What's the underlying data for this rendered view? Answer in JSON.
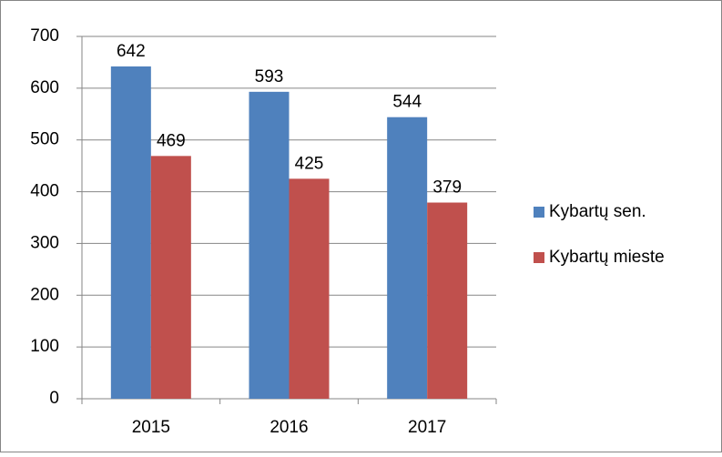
{
  "chart_data": {
    "type": "bar",
    "categories": [
      "2015",
      "2016",
      "2017"
    ],
    "series": [
      {
        "name": "Kybartų sen.",
        "color": "#4f81bd",
        "values": [
          642,
          593,
          544
        ]
      },
      {
        "name": "Kybartų mieste",
        "color": "#c0504d",
        "values": [
          469,
          425,
          379
        ]
      }
    ],
    "ylim": [
      0,
      700
    ],
    "yticks": [
      0,
      100,
      200,
      300,
      400,
      500,
      600,
      700
    ],
    "grid": true,
    "legend": "right"
  }
}
